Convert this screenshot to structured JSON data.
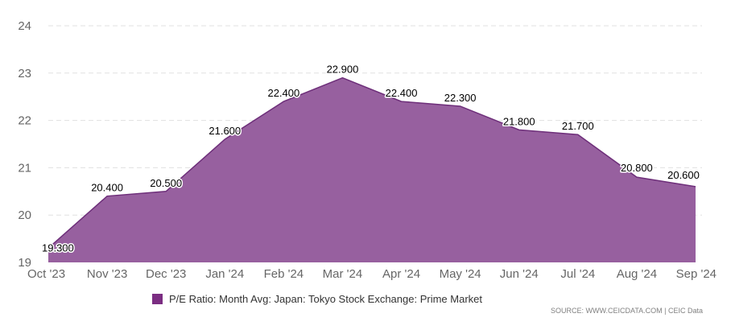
{
  "chart_data": {
    "type": "area",
    "categories": [
      "Oct '23",
      "Nov '23",
      "Dec '23",
      "Jan '24",
      "Feb '24",
      "Mar '24",
      "Apr '24",
      "May '24",
      "Jun '24",
      "Jul '24",
      "Aug '24",
      "Sep '24"
    ],
    "series": [
      {
        "name": "P/E Ratio: Month Avg: Japan: Tokyo Stock Exchange: Prime Market",
        "values": [
          19.3,
          20.4,
          20.5,
          21.6,
          22.4,
          22.9,
          22.4,
          22.3,
          21.8,
          21.7,
          20.8,
          20.6
        ],
        "labels": [
          "19.300",
          "20.400",
          "20.500",
          "21.600",
          "22.400",
          "22.900",
          "22.400",
          "22.300",
          "21.800",
          "21.700",
          "20.800",
          "20.600"
        ]
      }
    ],
    "yticks": [
      "19",
      "20",
      "21",
      "22",
      "23",
      "24"
    ],
    "ylim": [
      19,
      24
    ],
    "grid": true,
    "legend_position": "bottom-center",
    "colors": {
      "fill": "#97609f",
      "line": "#6e2f7a",
      "legend_swatch": "#7b2d82",
      "grid": "#e0e0e0"
    }
  },
  "source": "SOURCE: WWW.CEICDATA.COM | CEIC Data"
}
